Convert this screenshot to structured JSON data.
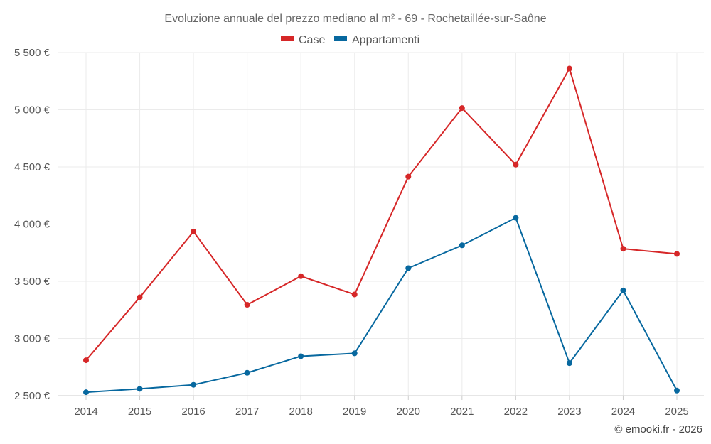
{
  "chart_data": {
    "type": "line",
    "title": "Evoluzione annuale del prezzo mediano al m² - 69 - Rochetaillée-sur-Saône",
    "categories": [
      "2014",
      "2015",
      "2016",
      "2017",
      "2018",
      "2019",
      "2020",
      "2021",
      "2022",
      "2023",
      "2024",
      "2025"
    ],
    "series": [
      {
        "name": "Case",
        "color": "#d62728",
        "values": [
          2810,
          3360,
          3935,
          3295,
          3545,
          3385,
          4415,
          5015,
          4520,
          5360,
          3785,
          3740
        ]
      },
      {
        "name": "Appartamenti",
        "color": "#07689f",
        "values": [
          2530,
          2560,
          2595,
          2700,
          2845,
          2870,
          3615,
          3815,
          4055,
          2785,
          3420,
          2545
        ]
      }
    ],
    "yticks": [
      2500,
      3000,
      3500,
      4000,
      4500,
      5000,
      5500
    ],
    "ytick_labels": [
      "2 500 €",
      "3 000 €",
      "3 500 €",
      "4 000 €",
      "4 500 €",
      "5 000 €",
      "5 500 €"
    ],
    "ylim": [
      2500,
      5500
    ],
    "xlabel": "",
    "ylabel": "",
    "legend_position": "top-center",
    "credit": "© emooki.fr - 2026"
  }
}
